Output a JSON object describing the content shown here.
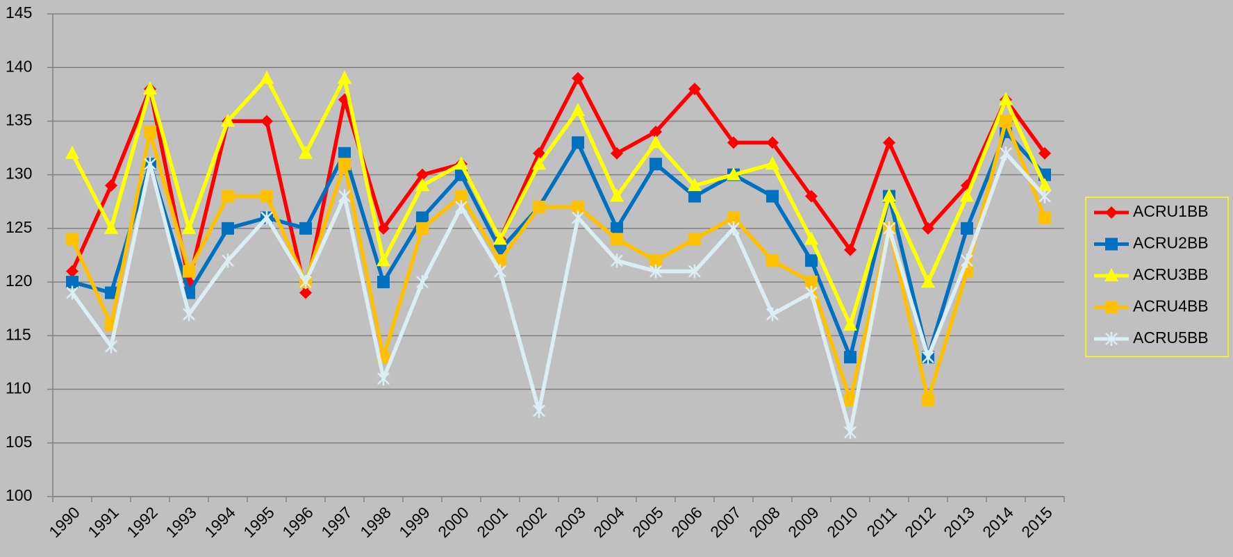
{
  "chart_data": {
    "type": "line",
    "categories": [
      "1990",
      "1991",
      "1992",
      "1993",
      "1994",
      "1995",
      "1996",
      "1997",
      "1998",
      "1999",
      "2000",
      "2001",
      "2002",
      "2003",
      "2004",
      "2005",
      "2006",
      "2007",
      "2008",
      "2009",
      "2010",
      "2011",
      "2012",
      "2013",
      "2014",
      "2015"
    ],
    "series": [
      {
        "name": "ACRU1BB",
        "color": "#ff0000",
        "marker": "diamond",
        "values": [
          121,
          129,
          138,
          120,
          135,
          135,
          119,
          137,
          125,
          130,
          131,
          124,
          132,
          139,
          132,
          134,
          138,
          133,
          133,
          128,
          123,
          133,
          125,
          129,
          137,
          132
        ]
      },
      {
        "name": "ACRU2BB",
        "color": "#0070c0",
        "marker": "square",
        "values": [
          120,
          119,
          131,
          119,
          125,
          126,
          125,
          132,
          120,
          126,
          130,
          123,
          127,
          133,
          125,
          131,
          128,
          130,
          128,
          122,
          113,
          128,
          113,
          125,
          134,
          130
        ]
      },
      {
        "name": "ACRU3BB",
        "color": "#ffff00",
        "marker": "triangle",
        "values": [
          132,
          125,
          138,
          125,
          135,
          139,
          132,
          139,
          122,
          129,
          131,
          124,
          131,
          136,
          128,
          133,
          129,
          130,
          131,
          124,
          116,
          128,
          120,
          128,
          137,
          129
        ]
      },
      {
        "name": "ACRU4BB",
        "color": "#ffc000",
        "marker": "square",
        "values": [
          124,
          116,
          134,
          121,
          128,
          128,
          120,
          131,
          113,
          125,
          128,
          122,
          127,
          127,
          124,
          122,
          124,
          126,
          122,
          120,
          109,
          125,
          109,
          121,
          135,
          126
        ]
      },
      {
        "name": "ACRU5BB",
        "color": "#dbeef3",
        "marker": "star",
        "values": [
          119,
          114,
          131,
          117,
          122,
          126,
          120,
          128,
          111,
          120,
          127,
          121,
          108,
          126,
          122,
          121,
          121,
          125,
          117,
          119,
          106,
          125,
          113,
          122,
          132,
          128
        ]
      }
    ],
    "ylim": [
      100,
      145
    ],
    "yticks": [
      100,
      105,
      110,
      115,
      120,
      125,
      130,
      135,
      140,
      145
    ],
    "grid": true,
    "legend": "right"
  }
}
